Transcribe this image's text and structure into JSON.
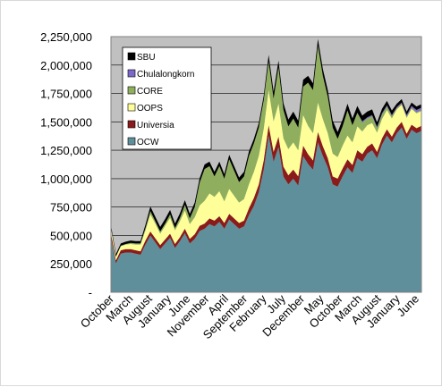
{
  "chart_data": {
    "type": "area",
    "stacked": true,
    "title": "",
    "xlabel": "",
    "ylabel": "",
    "ylim": [
      0,
      2250000
    ],
    "y_ticks": [
      "-",
      "250,000",
      "500,000",
      "750,000",
      "1,000,000",
      "1,250,000",
      "1,500,000",
      "1,750,000",
      "2,000,000",
      "2,250,000"
    ],
    "x_tick_labels": [
      "October",
      "March",
      "August",
      "January",
      "June",
      "November",
      "April",
      "September",
      "February",
      "July",
      "December",
      "May",
      "October",
      "March",
      "August",
      "January",
      "June"
    ],
    "grid": true,
    "legend_position": "top-left inside plot",
    "plot_background": "#c0c0c0",
    "series": [
      {
        "name": "OCW",
        "color": "#5f8f9b",
        "values": [
          480000,
          255000,
          340000,
          350000,
          350000,
          340000,
          330000,
          420000,
          500000,
          440000,
          380000,
          430000,
          480000,
          390000,
          450000,
          520000,
          430000,
          470000,
          540000,
          560000,
          600000,
          580000,
          620000,
          560000,
          640000,
          600000,
          560000,
          580000,
          680000,
          760000,
          880000,
          1080000,
          1380000,
          1150000,
          1280000,
          1020000,
          950000,
          1000000,
          940000,
          1200000,
          1130000,
          1080000,
          1320000,
          1200000,
          1100000,
          950000,
          930000,
          1020000,
          1100000,
          1050000,
          1180000,
          1150000,
          1220000,
          1250000,
          1180000,
          1300000,
          1380000,
          1320000,
          1400000,
          1450000,
          1350000,
          1430000,
          1400000,
          1420000
        ]
      },
      {
        "name": "Universia",
        "color": "#8b1a1a",
        "values": [
          40000,
          25000,
          30000,
          30000,
          30000,
          30000,
          30000,
          35000,
          35000,
          35000,
          35000,
          35000,
          35000,
          35000,
          35000,
          40000,
          40000,
          40000,
          45000,
          45000,
          50000,
          50000,
          50000,
          50000,
          50000,
          50000,
          50000,
          50000,
          60000,
          70000,
          70000,
          80000,
          90000,
          85000,
          90000,
          85000,
          80000,
          80000,
          80000,
          90000,
          85000,
          80000,
          90000,
          85000,
          80000,
          70000,
          70000,
          70000,
          70000,
          70000,
          70000,
          65000,
          60000,
          60000,
          55000,
          55000,
          55000,
          50000,
          50000,
          50000,
          45000,
          45000,
          45000,
          45000
        ]
      },
      {
        "name": "OOPS",
        "color": "#ffff99",
        "values": [
          40000,
          30000,
          35000,
          40000,
          45000,
          50000,
          60000,
          90000,
          150000,
          130000,
          100000,
          120000,
          140000,
          120000,
          140000,
          160000,
          130000,
          150000,
          180000,
          200000,
          220000,
          210000,
          220000,
          190000,
          220000,
          200000,
          180000,
          190000,
          210000,
          230000,
          250000,
          280000,
          310000,
          270000,
          290000,
          250000,
          230000,
          240000,
          230000,
          270000,
          250000,
          240000,
          260000,
          240000,
          220000,
          200000,
          190000,
          200000,
          210000,
          200000,
          210000,
          200000,
          190000,
          180000,
          170000,
          170000,
          170000,
          160000,
          160000,
          150000,
          140000,
          140000,
          130000,
          130000
        ]
      },
      {
        "name": "CORE",
        "color": "#8faf5f",
        "values": [
          10000,
          5000,
          5000,
          5000,
          10000,
          10000,
          10000,
          20000,
          30000,
          20000,
          20000,
          20000,
          30000,
          20000,
          30000,
          50000,
          50000,
          90000,
          200000,
          280000,
          240000,
          180000,
          220000,
          200000,
          260000,
          220000,
          180000,
          200000,
          250000,
          250000,
          250000,
          250000,
          250000,
          200000,
          320000,
          250000,
          200000,
          210000,
          200000,
          250000,
          380000,
          380000,
          500000,
          380000,
          320000,
          230000,
          160000,
          170000,
          220000,
          150000,
          120000,
          80000,
          60000,
          60000,
          40000,
          40000,
          30000,
          20000,
          10000,
          10000,
          10000,
          10000,
          10000,
          10000
        ]
      },
      {
        "name": "Chulalongkorn",
        "color": "#7b68c8",
        "values": [
          0,
          0,
          0,
          0,
          0,
          0,
          0,
          0,
          0,
          0,
          0,
          0,
          0,
          0,
          0,
          0,
          0,
          0,
          0,
          0,
          0,
          0,
          0,
          0,
          0,
          0,
          0,
          0,
          0,
          0,
          0,
          0,
          0,
          0,
          0,
          0,
          0,
          0,
          0,
          0,
          0,
          0,
          0,
          0,
          0,
          0,
          0,
          0,
          0,
          0,
          0,
          10000,
          10000,
          10000,
          10000,
          10000,
          10000,
          10000,
          10000,
          10000,
          15000,
          15000,
          20000,
          20000
        ]
      },
      {
        "name": "SBU",
        "color": "#000000",
        "values": [
          20000,
          20000,
          20000,
          20000,
          20000,
          20000,
          20000,
          30000,
          40000,
          40000,
          40000,
          40000,
          40000,
          40000,
          40000,
          40000,
          40000,
          40000,
          40000,
          40000,
          40000,
          40000,
          40000,
          40000,
          40000,
          40000,
          40000,
          40000,
          40000,
          40000,
          40000,
          40000,
          60000,
          60000,
          60000,
          60000,
          60000,
          60000,
          60000,
          60000,
          60000,
          60000,
          60000,
          60000,
          60000,
          60000,
          60000,
          60000,
          60000,
          60000,
          60000,
          50000,
          50000,
          50000,
          40000,
          40000,
          40000,
          40000,
          30000,
          30000,
          30000,
          30000,
          30000,
          30000
        ]
      }
    ]
  }
}
